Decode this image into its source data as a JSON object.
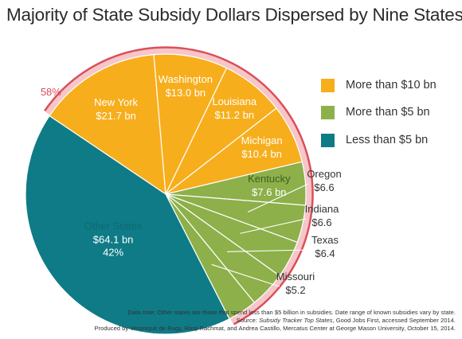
{
  "chart_data": {
    "type": "pie",
    "title": "Majority of State Subsidy Dollars Dispersed by Nine States",
    "unit": "bn",
    "slices": [
      {
        "name": "New York",
        "value": 21.7,
        "label_value": "$21.7 bn",
        "category": "More than $10 bn",
        "color": "#F7AE1C",
        "label_color": "#FFFFFF"
      },
      {
        "name": "Washington",
        "value": 13.0,
        "label_value": "$13.0 bn",
        "category": "More than $10 bn",
        "color": "#F7AE1C",
        "label_color": "#FFFFFF"
      },
      {
        "name": "Louisiana",
        "value": 11.2,
        "label_value": "$11.2 bn",
        "category": "More than $10 bn",
        "color": "#F7AE1C",
        "label_color": "#FFFFFF"
      },
      {
        "name": "Michigan",
        "value": 10.4,
        "label_value": "$10.4 bn",
        "category": "More than $10 bn",
        "color": "#F7AE1C",
        "label_color": "#FFFFFF"
      },
      {
        "name": "Kentucky",
        "value": 7.6,
        "label_value": "$7.6 bn",
        "category": "More than $5 bn",
        "color": "#8DB04A",
        "label_color": "#FFFFFF"
      },
      {
        "name": "Oregon",
        "value": 6.6,
        "label_value": "$6.6",
        "category": "More than $5 bn",
        "color": "#8DB04A",
        "label_color": "#333333"
      },
      {
        "name": "Indiana",
        "value": 6.6,
        "label_value": "$6.6",
        "category": "More than $5 bn",
        "color": "#8DB04A",
        "label_color": "#333333"
      },
      {
        "name": "Texas",
        "value": 6.4,
        "label_value": "$6.4",
        "category": "More than $5 bn",
        "color": "#8DB04A",
        "label_color": "#333333"
      },
      {
        "name": "Missouri",
        "value": 5.2,
        "label_value": "$5.2",
        "category": "More than $5 bn",
        "color": "#8DB04A",
        "label_color": "#333333"
      },
      {
        "name": "Other States",
        "value": 64.1,
        "label_value": "$64.1 bn",
        "percent_label": "42%",
        "category": "Less than $5 bn",
        "color": "#0F7B87",
        "label_color": "#FFFFFF"
      }
    ],
    "highlight_arc": {
      "label": "58%",
      "color": "#D9505A",
      "fill": "#F6C6C9"
    },
    "legend": {
      "position": "right",
      "items": [
        {
          "label": "More than $10 bn",
          "color": "#F7AE1C"
        },
        {
          "label": "More than $5 bn",
          "color": "#8DB04A"
        },
        {
          "label": "Less than $5 bn",
          "color": "#0F7B87"
        }
      ]
    }
  },
  "footnotes": {
    "line1": "Data note: Other states are those that spend less than $5 billion in subsidies. Date range of known subsidies vary by state.",
    "line2_prefix": "Source: ",
    "line2_italic": "Subsidy Tracker Top States",
    "line2_suffix": ", Good Jobs First, accessed September 2014.",
    "line3": "Produced by Veronique de Rugy, Rizqi Rachmat, and Andrea Castillo, Mercatus Center at George Mason University, October 15, 2014."
  }
}
